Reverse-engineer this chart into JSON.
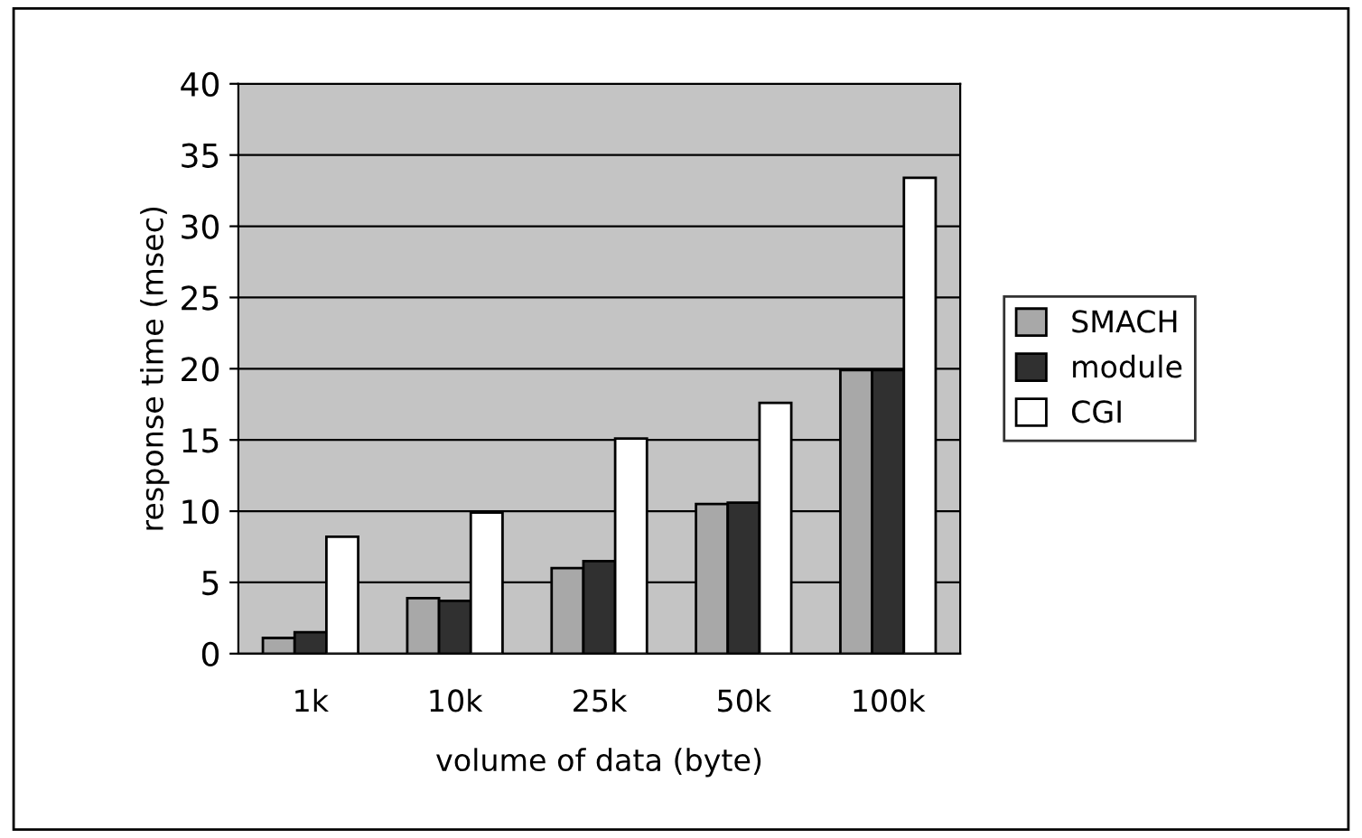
{
  "chart_data": {
    "type": "bar",
    "xlabel": "volume of data (byte)",
    "ylabel": "response time (msec)",
    "categories": [
      "1k",
      "10k",
      "25k",
      "50k",
      "100k"
    ],
    "series": [
      {
        "name": "SMACH",
        "color": "#a8a8a8",
        "values": [
          1.1,
          3.9,
          6.0,
          10.5,
          19.9
        ]
      },
      {
        "name": "module",
        "color": "#303030",
        "values": [
          1.5,
          3.7,
          6.5,
          10.6,
          19.9
        ]
      },
      {
        "name": "CGI",
        "color": "#ffffff",
        "values": [
          8.2,
          9.9,
          15.1,
          17.6,
          33.4
        ]
      }
    ],
    "ylim": [
      0,
      40
    ],
    "yticks": [
      0,
      5,
      10,
      15,
      20,
      25,
      30,
      35,
      40
    ],
    "grid": "y",
    "legend": "right"
  }
}
